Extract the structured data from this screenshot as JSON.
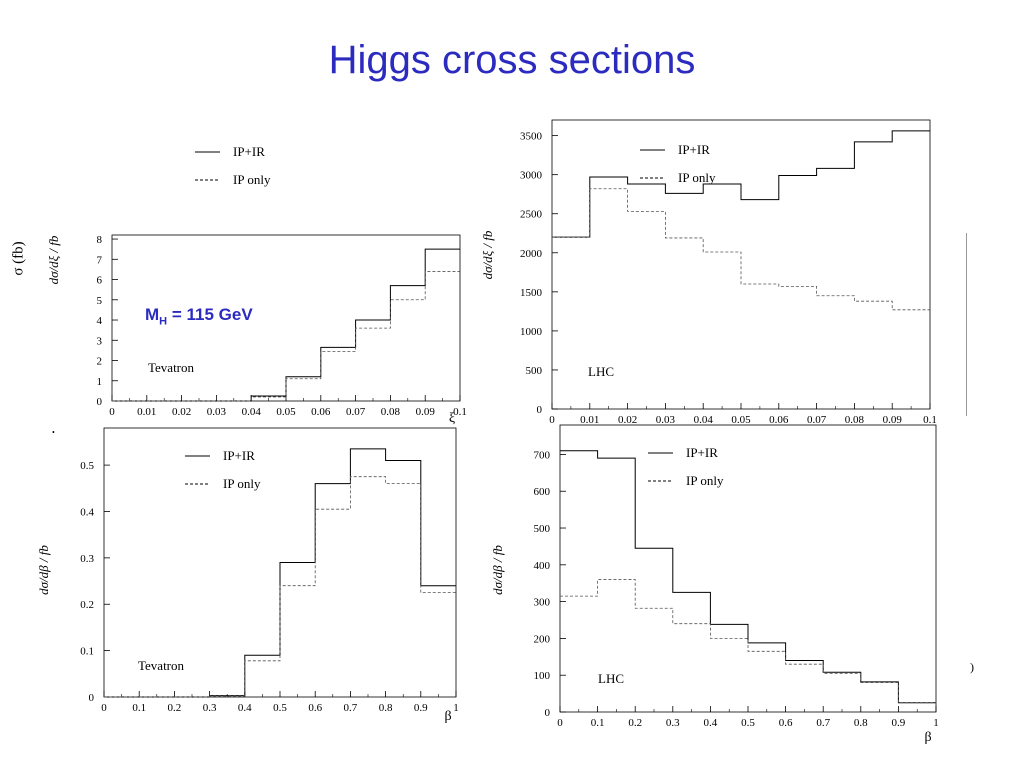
{
  "title": "Higgs cross sections",
  "mass_label": {
    "prefix": "M",
    "subscript": "H",
    "text": " = 115 GeV"
  },
  "side_ylabel": "σ (fb)",
  "stray_marks": {
    "right_paren": ")",
    "dot": "•"
  },
  "colors": {
    "title": "#2b2bbf",
    "primary_line": "#000000",
    "secondary_line": "#555555"
  },
  "chart_data": [
    {
      "id": "tev_xi",
      "type": "line",
      "step": true,
      "ylabel": "dσ/dξ / fb",
      "xlabel": "ξ",
      "xlim": [
        0,
        0.1
      ],
      "ylim": [
        0,
        8.2
      ],
      "bin_edges": [
        0,
        0.01,
        0.02,
        0.03,
        0.04,
        0.05,
        0.06,
        0.07,
        0.08,
        0.09,
        0.1
      ],
      "x_ticks": [
        "0",
        "0.01",
        "0.02",
        "0.03",
        "0.04",
        "0.05",
        "0.06",
        "0.07",
        "0.08",
        "0.09",
        "0.1"
      ],
      "y_ticks": [
        0,
        1,
        2,
        3,
        4,
        5,
        6,
        7,
        8
      ],
      "legend": [
        "IP+IR",
        "IP only"
      ],
      "legend_position": "top-left",
      "annotation": "Tevatron",
      "series": [
        {
          "name": "IP+IR",
          "style": "solid",
          "values": [
            0,
            0,
            0,
            0,
            0.25,
            1.2,
            2.65,
            4.0,
            5.7,
            7.5
          ]
        },
        {
          "name": "IP only",
          "style": "dashed",
          "values": [
            0,
            0,
            0,
            0,
            0.2,
            1.1,
            2.45,
            3.6,
            5.0,
            6.4
          ]
        }
      ]
    },
    {
      "id": "lhc_xi",
      "type": "line",
      "step": true,
      "ylabel": "dσ/dξ / fb",
      "xlabel": "",
      "xlim": [
        0,
        0.1
      ],
      "ylim": [
        0,
        3700
      ],
      "bin_edges": [
        0,
        0.01,
        0.02,
        0.03,
        0.04,
        0.05,
        0.06,
        0.07,
        0.08,
        0.09,
        0.1
      ],
      "x_ticks": [
        "0",
        "0.01",
        "0.02",
        "0.03",
        "0.04",
        "0.05",
        "0.06",
        "0.07",
        "0.08",
        "0.09",
        "0.1"
      ],
      "y_ticks": [
        0,
        500,
        1000,
        1500,
        2000,
        2500,
        3000,
        3500
      ],
      "legend": [
        "IP+IR",
        "IP only"
      ],
      "legend_position": "top-right",
      "annotation": "LHC",
      "series": [
        {
          "name": "IP+IR",
          "style": "solid",
          "values": [
            2200,
            2970,
            2880,
            2760,
            2880,
            2680,
            2990,
            3080,
            3420,
            3560
          ]
        },
        {
          "name": "IP only",
          "style": "dashed",
          "values": [
            2200,
            2820,
            2530,
            2190,
            2010,
            1600,
            1570,
            1450,
            1380,
            1270
          ]
        }
      ]
    },
    {
      "id": "tev_beta",
      "type": "line",
      "step": true,
      "ylabel": "dσ/dβ / fb",
      "xlabel": "β",
      "xlim": [
        0,
        1
      ],
      "ylim": [
        0,
        0.58
      ],
      "bin_edges": [
        0,
        0.1,
        0.2,
        0.3,
        0.4,
        0.5,
        0.6,
        0.7,
        0.8,
        0.9,
        1.0
      ],
      "x_ticks": [
        "0",
        "0.1",
        "0.2",
        "0.3",
        "0.4",
        "0.5",
        "0.6",
        "0.7",
        "0.8",
        "0.9",
        "1"
      ],
      "y_ticks": [
        0,
        0.1,
        0.2,
        0.3,
        0.4,
        0.5
      ],
      "legend": [
        "IP+IR",
        "IP only"
      ],
      "legend_position": "top-center",
      "annotation": "Tevatron",
      "series": [
        {
          "name": "IP+IR",
          "style": "solid",
          "values": [
            0,
            0,
            0,
            0.003,
            0.09,
            0.29,
            0.46,
            0.535,
            0.51,
            0.24
          ]
        },
        {
          "name": "IP only",
          "style": "dashed",
          "values": [
            0,
            0,
            0,
            0.002,
            0.078,
            0.24,
            0.405,
            0.475,
            0.46,
            0.225
          ]
        }
      ]
    },
    {
      "id": "lhc_beta",
      "type": "line",
      "step": true,
      "ylabel": "dσ/dβ / fb",
      "xlabel": "β",
      "xlim": [
        0,
        1
      ],
      "ylim": [
        0,
        780
      ],
      "bin_edges": [
        0,
        0.1,
        0.2,
        0.3,
        0.4,
        0.5,
        0.6,
        0.7,
        0.8,
        0.9,
        1.0
      ],
      "x_ticks": [
        "0",
        "0.1",
        "0.2",
        "0.3",
        "0.4",
        "0.5",
        "0.6",
        "0.7",
        "0.8",
        "0.9",
        "1"
      ],
      "y_ticks": [
        0,
        100,
        200,
        300,
        400,
        500,
        600,
        700
      ],
      "legend": [
        "IP+IR",
        "IP only"
      ],
      "legend_position": "top-center",
      "annotation": "LHC",
      "series": [
        {
          "name": "IP+IR",
          "style": "solid",
          "values": [
            710,
            690,
            445,
            325,
            238,
            188,
            140,
            108,
            82,
            25
          ]
        },
        {
          "name": "IP only",
          "style": "dashed",
          "values": [
            315,
            360,
            282,
            240,
            200,
            165,
            130,
            105,
            80,
            25
          ]
        }
      ]
    }
  ]
}
